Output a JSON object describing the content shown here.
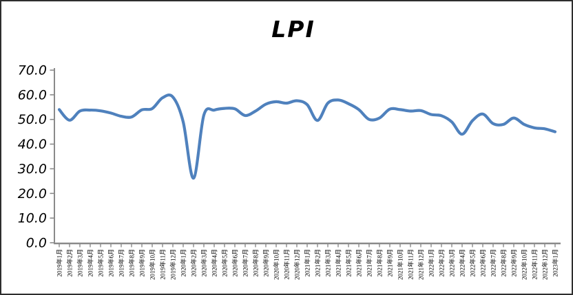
{
  "window": {
    "background_color": "#ffffff",
    "border_color": "#2e2e2e"
  },
  "chart_data": {
    "type": "line",
    "title": "LPI",
    "categories": [
      "2019年1月",
      "2019年2月",
      "2019年3月",
      "2019年4月",
      "2019年5月",
      "2019年6月",
      "2019年7月",
      "2019年8月",
      "2019年9月",
      "2019年10月",
      "2019年11月",
      "2019年12月",
      "2020年1月",
      "2020年2月",
      "2020年3月",
      "2020年4月",
      "2020年5月",
      "2020年6月",
      "2020年7月",
      "2020年8月",
      "2020年9月",
      "2020年10月",
      "2020年11月",
      "2020年12月",
      "2021年1月",
      "2021年2月",
      "2021年3月",
      "2021年4月",
      "2021年5月",
      "2021年6月",
      "2021年7月",
      "2021年8月",
      "2021年9月",
      "2021年10月",
      "2021年11月",
      "2021年12月",
      "2022年1月",
      "2022年2月",
      "2022年3月",
      "2022年4月",
      "2022年5月",
      "2022年6月",
      "2022年7月",
      "2022年8月",
      "2022年9月",
      "2022年10月",
      "2022年11月",
      "2022年12月",
      "2023年1月"
    ],
    "series": [
      {
        "name": "LPI",
        "values": [
          54.0,
          49.7,
          53.4,
          53.8,
          53.5,
          52.6,
          51.3,
          51.0,
          53.9,
          54.4,
          58.8,
          59.1,
          49.0,
          26.2,
          51.8,
          53.8,
          54.5,
          54.3,
          51.6,
          53.4,
          56.2,
          57.2,
          56.6,
          57.6,
          56.0,
          49.6,
          56.6,
          57.9,
          56.4,
          54.0,
          50.0,
          50.6,
          54.2,
          54.0,
          53.4,
          53.6,
          52.0,
          51.5,
          49.0,
          44.0,
          49.5,
          52.2,
          48.3,
          48.0,
          50.6,
          48.0,
          46.6,
          46.2,
          45.0
        ]
      }
    ],
    "xlabel": "",
    "ylabel": "",
    "ylim": [
      0,
      70
    ],
    "ytick_step": 10,
    "ytick_labels": [
      "0.0",
      "10.0",
      "20.0",
      "30.0",
      "40.0",
      "50.0",
      "60.0",
      "70.0"
    ],
    "grid": false,
    "legend_position": "none",
    "line_color": "#4F81BD",
    "axis_color": "#8a8a8a",
    "label_color": "#000000"
  }
}
